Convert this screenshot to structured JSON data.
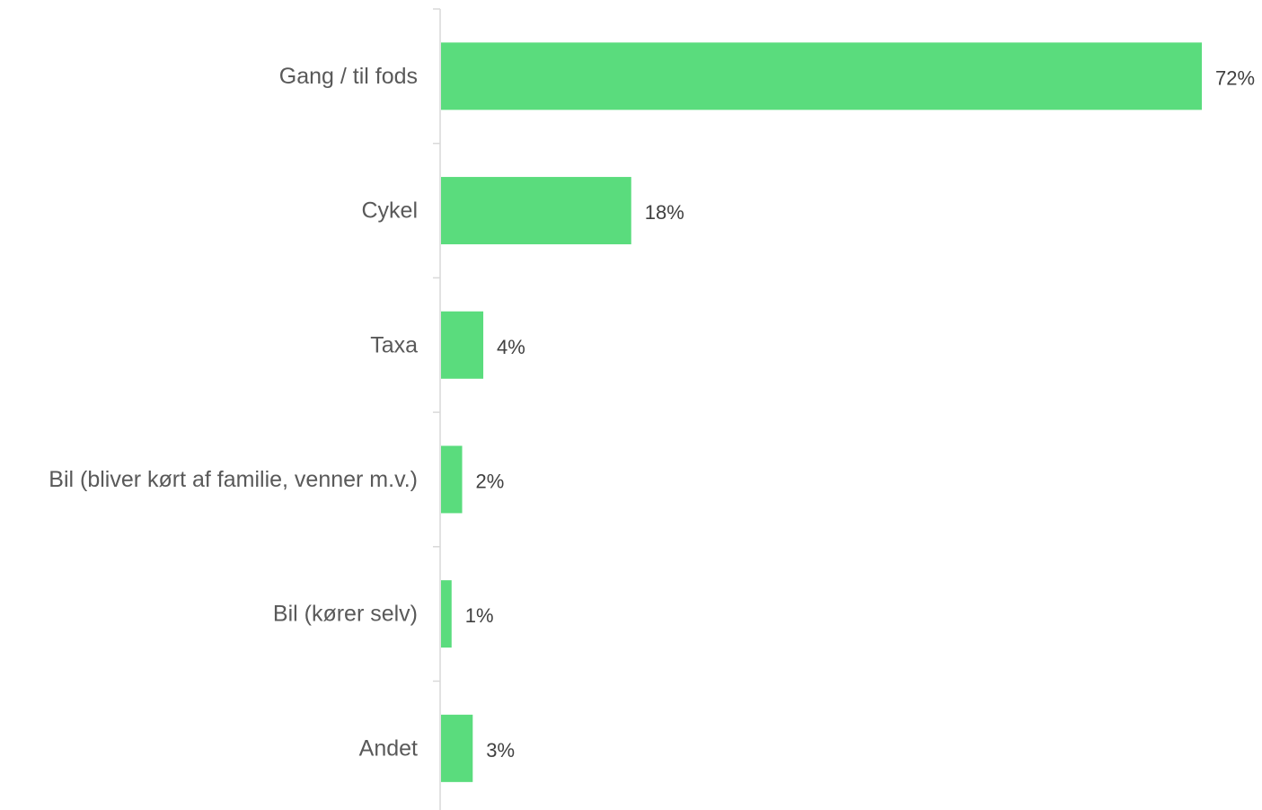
{
  "chart_data": {
    "type": "bar",
    "orientation": "horizontal",
    "categories": [
      "Gang / til fods",
      "Cykel",
      "Taxa",
      "Bil (bliver kørt af familie, venner m.v.)",
      "Bil (kører selv)",
      "Andet"
    ],
    "values": [
      72,
      18,
      4,
      2,
      1,
      3
    ],
    "value_labels": [
      "72%",
      "18%",
      "4%",
      "2%",
      "1%",
      "3%"
    ],
    "unit": "%",
    "xlim": [
      0,
      72
    ],
    "title": "",
    "xlabel": "",
    "ylabel": "",
    "grid": false,
    "legend": "none",
    "bar_color": "#5ADC7D",
    "axis_color": "#D9D9D9",
    "label_color": "#595959",
    "value_label_color": "#404040"
  }
}
